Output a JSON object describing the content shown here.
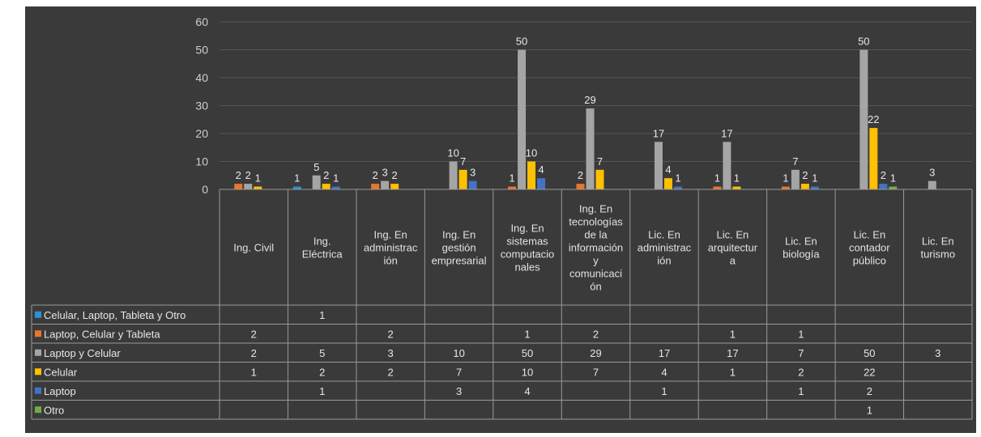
{
  "chart_data": {
    "type": "bar",
    "title": "",
    "ylim": [
      0,
      60
    ],
    "yticks": [
      0,
      10,
      20,
      30,
      40,
      50,
      60
    ],
    "grid": true,
    "legend_position": "data-table",
    "categories": [
      "Ing. Civil",
      "Ing. Eléctrica",
      "Ing. En administración",
      "Ing. En gestión empresarial",
      "Ing. En sistemas computacionales",
      "Ing. En tecnologías de la información y comunicación",
      "Lic. En administración",
      "Lic. En arquitectura",
      "Lic. En biología",
      "Lic. En contador público",
      "Lic. En turismo"
    ],
    "category_lines": [
      [
        "Ing. Civil"
      ],
      [
        "Ing.",
        "Eléctrica"
      ],
      [
        "Ing. En",
        "administrac",
        "ión"
      ],
      [
        "Ing. En",
        "gestión",
        "empresarial"
      ],
      [
        "Ing. En",
        "sistemas",
        "computacio",
        "nales"
      ],
      [
        "Ing. En",
        "tecnologías",
        "de la",
        "información",
        "y",
        "comunicaci",
        "ón"
      ],
      [
        "Lic. En",
        "administrac",
        "ión"
      ],
      [
        "Lic. En",
        "arquitectur",
        "a"
      ],
      [
        "Lic. En",
        "biología"
      ],
      [
        "Lic. En",
        "contador",
        "público"
      ],
      [
        "Lic. En",
        "turismo"
      ]
    ],
    "series": [
      {
        "name": "Celular, Laptop, Tableta y Otro",
        "color": "#2e8fd6",
        "values": [
          null,
          1,
          null,
          null,
          null,
          null,
          null,
          null,
          null,
          null,
          null
        ]
      },
      {
        "name": "Laptop, Celular y Tableta",
        "color": "#e8762b",
        "values": [
          2,
          null,
          2,
          null,
          1,
          2,
          null,
          1,
          1,
          null,
          null
        ]
      },
      {
        "name": "Laptop y Celular",
        "color": "#a5a5a5",
        "values": [
          2,
          5,
          3,
          10,
          50,
          29,
          17,
          17,
          7,
          50,
          3
        ]
      },
      {
        "name": "Celular",
        "color": "#ffc000",
        "values": [
          1,
          2,
          2,
          7,
          10,
          7,
          4,
          1,
          2,
          22,
          null
        ]
      },
      {
        "name": "Laptop",
        "color": "#4472c4",
        "values": [
          null,
          1,
          null,
          3,
          4,
          null,
          1,
          null,
          1,
          2,
          null
        ]
      },
      {
        "name": "Otro",
        "color": "#70ad47",
        "values": [
          null,
          null,
          null,
          null,
          null,
          null,
          null,
          null,
          null,
          1,
          null
        ]
      }
    ]
  }
}
